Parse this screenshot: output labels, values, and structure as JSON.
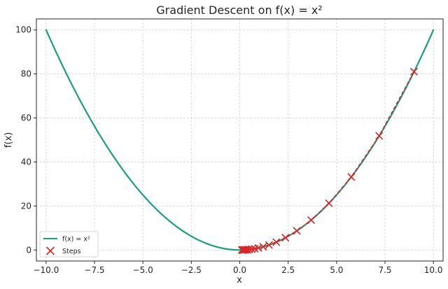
{
  "chart_data": {
    "type": "line",
    "title": "Gradient Descent on f(x) = x²",
    "xlabel": "x",
    "ylabel": "f(x)",
    "xlim": [
      -10.5,
      10.5
    ],
    "ylim": [
      -5,
      105
    ],
    "grid": true,
    "legend_position": "bottom-left",
    "x_ticks": [
      -10,
      -7.5,
      -5,
      -2.5,
      0,
      2.5,
      5,
      7.5,
      10
    ],
    "x_tick_labels": [
      "−10.0",
      "−7.5",
      "−5.0",
      "−2.5",
      "0.0",
      "2.5",
      "5.0",
      "7.5",
      "10.0"
    ],
    "y_ticks": [
      0,
      20,
      40,
      60,
      80,
      100
    ],
    "y_tick_labels": [
      "0",
      "20",
      "40",
      "60",
      "80",
      "100"
    ],
    "series": [
      {
        "name": "f(x) = x²",
        "kind": "line",
        "color": "#1a9e80",
        "function": "x^2",
        "x_range": [
          -10,
          10
        ]
      },
      {
        "name": "Steps",
        "kind": "scatter",
        "marker": "x",
        "color": "#d62728",
        "connect_style": "dashed",
        "x": [
          9.0,
          7.2,
          5.76,
          4.608,
          3.6864,
          2.9491,
          2.3593,
          1.8874,
          1.51,
          1.208,
          0.9664,
          0.7731,
          0.6185,
          0.4948,
          0.3958,
          0.3167,
          0.2533,
          0.2027,
          0.1621,
          0.1297,
          0.1038
        ],
        "y": [
          81.0,
          51.84,
          33.18,
          21.23,
          13.59,
          8.7,
          5.57,
          3.56,
          2.28,
          1.46,
          0.93,
          0.6,
          0.38,
          0.24,
          0.16,
          0.1,
          0.06,
          0.04,
          0.03,
          0.02,
          0.01
        ]
      }
    ]
  }
}
